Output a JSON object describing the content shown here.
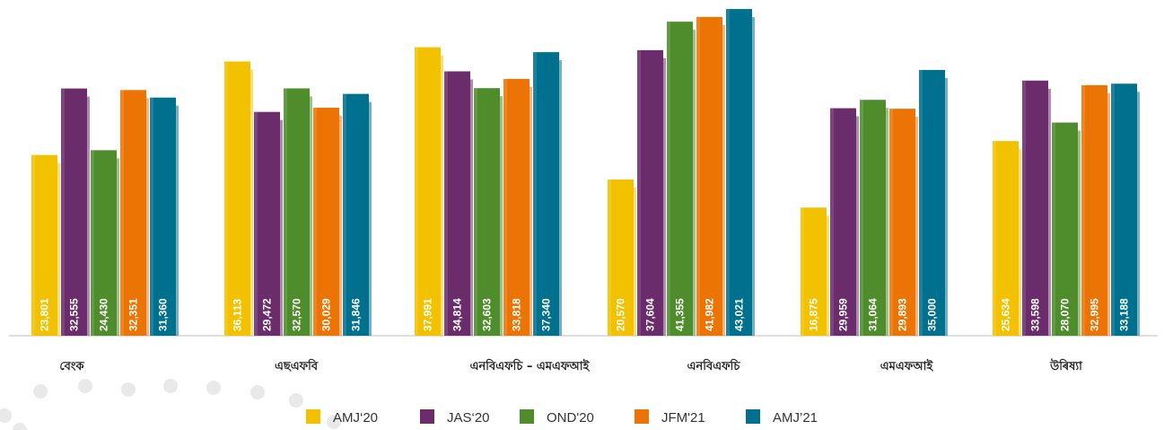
{
  "chart_data": {
    "type": "bar",
    "categories": [
      "বেংক",
      "এছএফবি",
      "এনবিএফচি – এমএফআই",
      "এনবিএফচি",
      "এমএফআই",
      "উৰিষ্যা"
    ],
    "series": [
      {
        "name": "AMJ‘20",
        "color": "#f2c200",
        "values": [
          23801,
          36113,
          37991,
          20570,
          16875,
          25634
        ]
      },
      {
        "name": "JAS‘20",
        "color": "#6b2c6b",
        "values": [
          32555,
          29472,
          34814,
          37604,
          29959,
          33598
        ]
      },
      {
        "name": "OND'20",
        "color": "#4e8c2c",
        "values": [
          24430,
          32570,
          32603,
          41355,
          31064,
          28070
        ]
      },
      {
        "name": "JFM'21",
        "color": "#ec7404",
        "values": [
          32351,
          30029,
          33818,
          41982,
          29893,
          32995
        ]
      },
      {
        "name": "AMJ’21",
        "color": "#00708f",
        "values": [
          31360,
          31846,
          37340,
          43021,
          35000,
          33188
        ]
      }
    ],
    "value_labels": [
      [
        "23,801",
        "36,113",
        "37,991",
        "20,570",
        "16,875",
        "25,634"
      ],
      [
        "32,555",
        "29,472",
        "34,814",
        "37,604",
        "29,959",
        "33,598"
      ],
      [
        "24,430",
        "32,570",
        "32,603",
        "41,355",
        "31,064",
        "28,070"
      ],
      [
        "32,351",
        "30,029",
        "33,818",
        "41,982",
        "29,893",
        "32,995"
      ],
      [
        "31,360",
        "31,846",
        "37,340",
        "43,021",
        "35,000",
        "33,188"
      ]
    ],
    "ylim": [
      0,
      43500
    ],
    "grid": false,
    "legend_position": "bottom"
  }
}
